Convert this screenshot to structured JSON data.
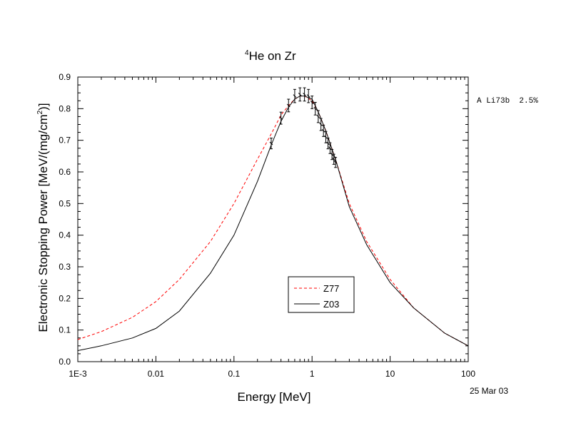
{
  "chart_data": {
    "type": "line",
    "title_sup": "4",
    "title_main": "He on Zr",
    "xlabel": "Energy [MeV]",
    "ylabel_main": "Electronic Stopping Power [MeV/(mg/cm",
    "ylabel_sup": "2",
    "ylabel_close": ")]",
    "x_scale": "log",
    "xlim": [
      0.001,
      100
    ],
    "ylim": [
      0.0,
      0.9
    ],
    "x_ticks": [
      {
        "value": 0.001,
        "label": "1E-3"
      },
      {
        "value": 0.01,
        "label": "0.01"
      },
      {
        "value": 0.1,
        "label": "0.1"
      },
      {
        "value": 1,
        "label": "1"
      },
      {
        "value": 10,
        "label": "10"
      },
      {
        "value": 100,
        "label": "100"
      }
    ],
    "y_ticks": [
      {
        "value": 0.0,
        "label": "0.0"
      },
      {
        "value": 0.1,
        "label": "0.1"
      },
      {
        "value": 0.2,
        "label": "0.2"
      },
      {
        "value": 0.3,
        "label": "0.3"
      },
      {
        "value": 0.4,
        "label": "0.4"
      },
      {
        "value": 0.5,
        "label": "0.5"
      },
      {
        "value": 0.6,
        "label": "0.6"
      },
      {
        "value": 0.7,
        "label": "0.7"
      },
      {
        "value": 0.8,
        "label": "0.8"
      },
      {
        "value": 0.9,
        "label": "0.9"
      }
    ],
    "grid": false,
    "legend_position": "center-bottom",
    "series": [
      {
        "name": "Z77",
        "style": "dashed",
        "color": "#ff0000",
        "x": [
          0.001,
          0.002,
          0.005,
          0.01,
          0.02,
          0.05,
          0.1,
          0.2,
          0.3,
          0.4,
          0.5,
          0.6,
          0.7,
          0.8,
          1.0,
          1.2,
          1.5,
          2,
          3,
          5,
          10,
          20,
          50,
          100
        ],
        "y": [
          0.07,
          0.095,
          0.14,
          0.19,
          0.26,
          0.38,
          0.5,
          0.64,
          0.72,
          0.78,
          0.81,
          0.83,
          0.84,
          0.84,
          0.825,
          0.79,
          0.73,
          0.64,
          0.5,
          0.38,
          0.26,
          0.17,
          0.09,
          0.05
        ]
      },
      {
        "name": "Z03",
        "style": "solid",
        "color": "#000000",
        "x": [
          0.001,
          0.002,
          0.005,
          0.01,
          0.02,
          0.05,
          0.1,
          0.2,
          0.3,
          0.4,
          0.5,
          0.6,
          0.7,
          0.8,
          1.0,
          1.2,
          1.5,
          2,
          3,
          5,
          10,
          20,
          50,
          100
        ],
        "y": [
          0.035,
          0.05,
          0.075,
          0.105,
          0.16,
          0.28,
          0.4,
          0.57,
          0.685,
          0.76,
          0.805,
          0.83,
          0.84,
          0.84,
          0.83,
          0.79,
          0.73,
          0.64,
          0.49,
          0.37,
          0.25,
          0.17,
          0.09,
          0.05
        ]
      }
    ],
    "measurements": {
      "name": "A Li73b",
      "uncertainty": "2.5%",
      "x": [
        0.3,
        0.4,
        0.5,
        0.6,
        0.7,
        0.8,
        0.9,
        1.0,
        1.1,
        1.2,
        1.3,
        1.4,
        1.5,
        1.6,
        1.7,
        1.8,
        1.9,
        2.0
      ],
      "y": [
        0.69,
        0.77,
        0.81,
        0.84,
        0.845,
        0.845,
        0.84,
        0.82,
        0.8,
        0.775,
        0.75,
        0.73,
        0.71,
        0.69,
        0.675,
        0.655,
        0.64,
        0.63
      ],
      "err": [
        0.017,
        0.019,
        0.02,
        0.021,
        0.021,
        0.021,
        0.021,
        0.02,
        0.02,
        0.019,
        0.019,
        0.018,
        0.018,
        0.017,
        0.017,
        0.016,
        0.016,
        0.016
      ]
    },
    "legend_entries": [
      "Z77",
      "Z03"
    ],
    "annotation_right": "A Li73b  2.5%",
    "date_text": "25 Mar 03"
  }
}
